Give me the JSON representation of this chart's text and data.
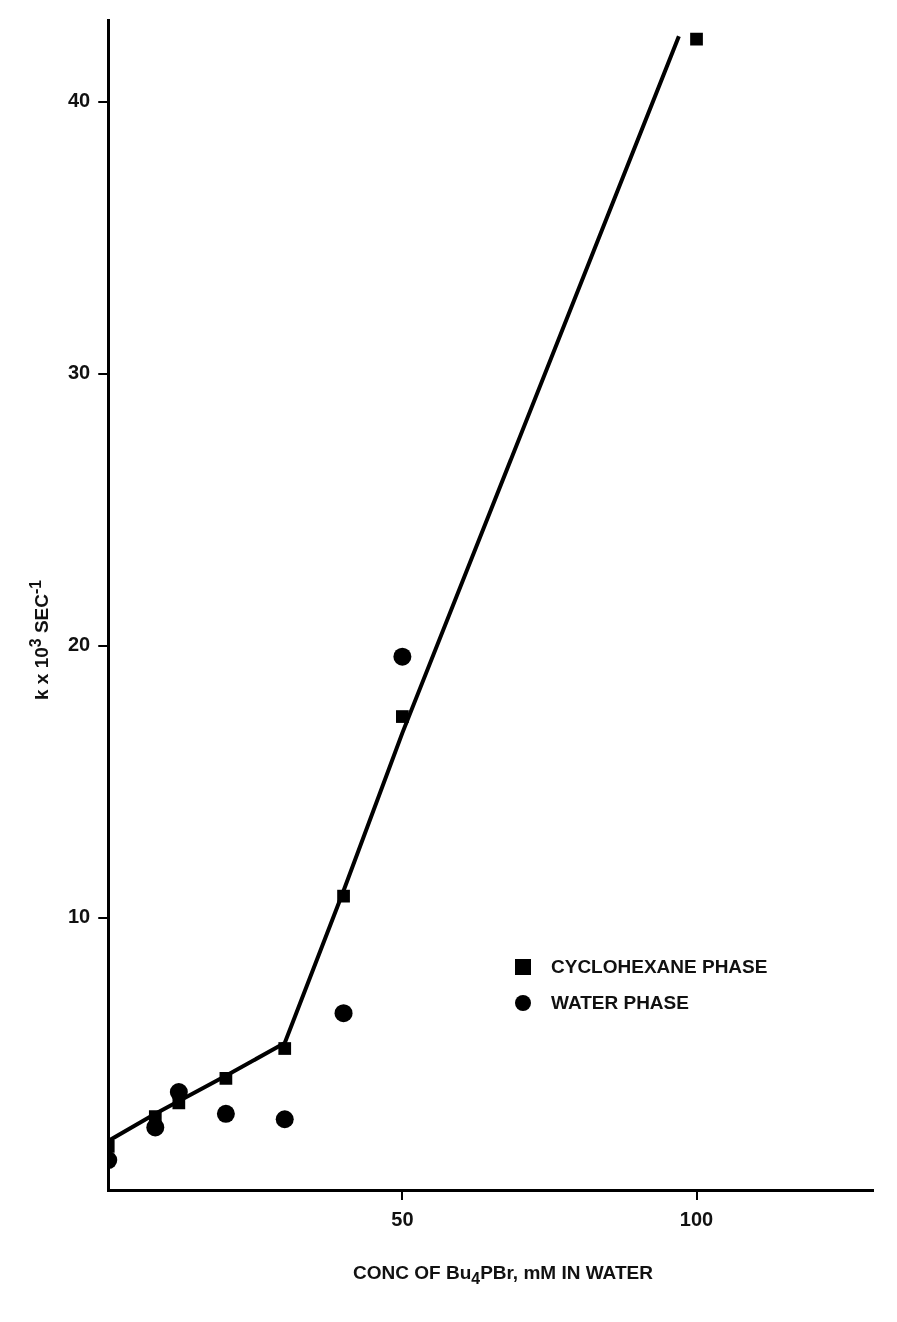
{
  "chart_data": {
    "type": "scatter",
    "xlabel": "CONC OF Bu$_{4}$PBr, mM IN WATER",
    "ylabel": "k x 10$^{3}$ SEC$^{-1}$",
    "xlim": [
      0,
      130
    ],
    "xticks": [
      50,
      100
    ],
    "ylim": [
      0,
      43
    ],
    "yticks": [
      10,
      20,
      30,
      40
    ],
    "grid": false,
    "legend": "right",
    "series": [
      {
        "name": "CYCLOHEXANE PHASE",
        "color": "#000000",
        "marker": "square",
        "x": [
          0,
          8,
          12,
          20,
          30,
          40,
          50,
          100
        ],
        "values": [
          1.6,
          2.7,
          3.2,
          4.1,
          5.2,
          10.8,
          17.4,
          42.3
        ]
      },
      {
        "name": "WATER PHASE",
        "color": "#000000",
        "marker": "circle",
        "x": [
          0,
          8,
          12,
          20,
          30,
          40,
          50
        ],
        "values": [
          1.1,
          2.3,
          3.6,
          2.8,
          2.6,
          6.5,
          19.6
        ]
      },
      {
        "type": "line",
        "color": "#000000",
        "marker": "none",
        "x": [
          0,
          8,
          20,
          30,
          40,
          50,
          97
        ],
        "values": [
          1.8,
          2.8,
          4.2,
          5.4,
          11,
          16.8,
          42.4
        ]
      }
    ]
  }
}
